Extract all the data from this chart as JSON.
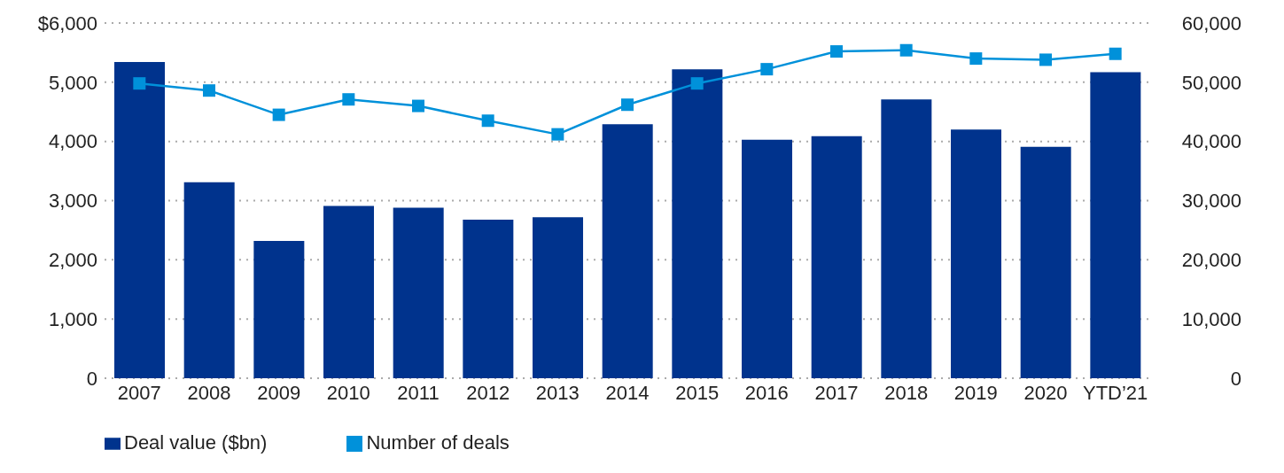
{
  "chart_data": {
    "type": "bar",
    "categories": [
      "2007",
      "2008",
      "2009",
      "2010",
      "2011",
      "2012",
      "2013",
      "2014",
      "2015",
      "2016",
      "2017",
      "2018",
      "2019",
      "2020",
      "YTD’21"
    ],
    "series": [
      {
        "name": "Deal value ($bn)",
        "color": "#00338d",
        "values": [
          5340,
          3310,
          2320,
          2910,
          2880,
          2680,
          2720,
          4290,
          5220,
          4030,
          4090,
          4710,
          4200,
          3910,
          5170
        ]
      },
      {
        "name": "Number of deals",
        "type": "line",
        "axis": "y2",
        "color": "#0091da",
        "marker": "square",
        "values": [
          49800,
          48600,
          44500,
          47100,
          46000,
          43500,
          41200,
          46200,
          49800,
          52200,
          55200,
          55400,
          54000,
          53800,
          54800
        ]
      }
    ],
    "ylim": [
      0,
      6000
    ],
    "yticks": [
      0,
      {
        "value": 1000,
        "label": "1,000"
      },
      {
        "value": 2000,
        "label": "2,000"
      },
      {
        "value": 3000,
        "label": "3,000"
      },
      {
        "value": 4000,
        "label": "4,000"
      },
      {
        "value": 5000,
        "label": "5,000"
      },
      {
        "value": 6000,
        "label": "$6,000"
      }
    ],
    "y2lim": [
      0,
      60000
    ],
    "y2ticks": [
      0,
      {
        "value": 10000,
        "label": "10,000"
      },
      {
        "value": 20000,
        "label": "20,000"
      },
      {
        "value": 30000,
        "label": "30,000"
      },
      {
        "value": 40000,
        "label": "40,000"
      },
      {
        "value": 50000,
        "label": "50,000"
      },
      {
        "value": 60000,
        "label": "60,000"
      }
    ],
    "grid": "y",
    "legend": "bottom left"
  }
}
